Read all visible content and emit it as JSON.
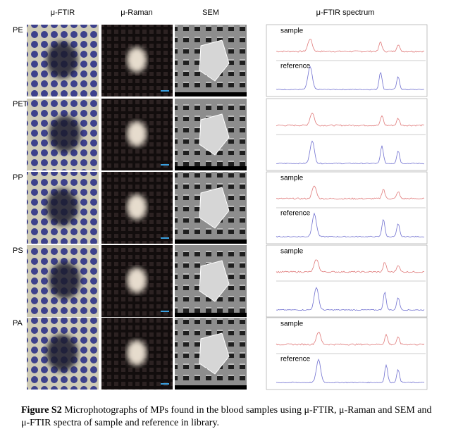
{
  "header": {
    "columns": [
      "μ-FTIR",
      "μ-Raman",
      "SEM",
      "μ-FTIR spectrum"
    ]
  },
  "rows": [
    {
      "label": "PE",
      "spectrum_labels": [
        "sample",
        "reference"
      ]
    },
    {
      "label": "PET",
      "spectrum_labels": []
    },
    {
      "label": "PP",
      "spectrum_labels": [
        "sample",
        "reference"
      ]
    },
    {
      "label": "PS",
      "spectrum_labels": [
        "sample"
      ]
    },
    {
      "label": "PA",
      "spectrum_labels": [
        "sample",
        "reference"
      ]
    }
  ],
  "caption": {
    "label": "Figure S2",
    "text": "Microphotographs of MPs found in the blood samples using μ-FTIR, μ-Raman and SEM and μ-FTIR spectra of sample and reference in library."
  }
}
